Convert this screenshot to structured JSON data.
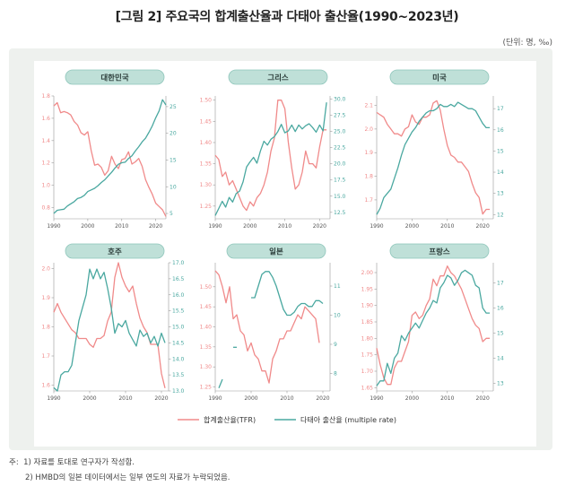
{
  "title": "[그림 2] 주요국의 합계출산율과 다태아 출산율(1990~2023년)",
  "unit": "(단위: 명, ‰)",
  "notes": {
    "prefix": "주:",
    "line1": "1) 자료를 토대로 연구자가 작성함.",
    "line2": "2) HMBD의 일본 데이터에서는 일부 연도의 자료가 누락되었음."
  },
  "legend": {
    "tfr": "합계출산율(TFR)",
    "multiple": "다태아 출산율 (multiple rate)"
  },
  "colors": {
    "tfr": "#f08a8a",
    "multiple": "#4aa8a0",
    "pill": "#bfe0d8",
    "pill_border": "#8fc6bb"
  },
  "chart_data": [
    {
      "type": "line",
      "country": "대한민국",
      "x_ticks": [
        1990,
        2000,
        2010,
        2020
      ],
      "xlim": [
        1990,
        2023
      ],
      "left_ticks": [
        0.8,
        1.0,
        1.2,
        1.4,
        1.6,
        1.8
      ],
      "left_ylim": [
        0.7,
        1.8
      ],
      "right_ticks": [
        5,
        10,
        15,
        20,
        25
      ],
      "right_ylim": [
        4,
        27
      ],
      "series": [
        {
          "key": "tfr",
          "axis": "left",
          "x": [
            1990,
            1991,
            1992,
            1993,
            1994,
            1995,
            1996,
            1997,
            1998,
            1999,
            2000,
            2001,
            2002,
            2003,
            2004,
            2005,
            2006,
            2007,
            2008,
            2009,
            2010,
            2011,
            2012,
            2013,
            2014,
            2015,
            2016,
            2017,
            2018,
            2019,
            2020,
            2021,
            2022,
            2023
          ],
          "values": [
            1.71,
            1.74,
            1.65,
            1.66,
            1.65,
            1.63,
            1.57,
            1.54,
            1.47,
            1.45,
            1.48,
            1.31,
            1.18,
            1.19,
            1.16,
            1.09,
            1.13,
            1.26,
            1.19,
            1.15,
            1.23,
            1.24,
            1.3,
            1.19,
            1.21,
            1.24,
            1.17,
            1.05,
            0.98,
            0.92,
            0.84,
            0.81,
            0.78,
            0.72
          ]
        },
        {
          "key": "multiple",
          "axis": "right",
          "x": [
            1990,
            1991,
            1992,
            1993,
            1994,
            1995,
            1996,
            1997,
            1998,
            1999,
            2000,
            2001,
            2002,
            2003,
            2004,
            2005,
            2006,
            2007,
            2008,
            2009,
            2010,
            2011,
            2012,
            2013,
            2014,
            2015,
            2016,
            2017,
            2018,
            2019,
            2020,
            2021,
            2022,
            2023
          ],
          "values": [
            5.0,
            5.6,
            5.7,
            5.8,
            6.4,
            6.8,
            7.2,
            7.8,
            8.0,
            8.4,
            9.1,
            9.4,
            9.7,
            10.2,
            10.8,
            11.3,
            12.0,
            12.7,
            13.5,
            14.2,
            14.5,
            14.6,
            15.3,
            15.8,
            16.7,
            17.5,
            18.4,
            19.1,
            20.2,
            21.4,
            22.9,
            24.2,
            26.3,
            25.3
          ]
        }
      ]
    },
    {
      "type": "line",
      "country": "그리스",
      "x_ticks": [
        1990,
        2000,
        2010,
        2020
      ],
      "xlim": [
        1990,
        2023
      ],
      "left_ticks": [
        1.25,
        1.3,
        1.35,
        1.4,
        1.45,
        1.5
      ],
      "left_ylim": [
        1.22,
        1.51
      ],
      "right_ticks": [
        12.5,
        15.0,
        17.5,
        20.0,
        22.5,
        25.0,
        27.5,
        30.0
      ],
      "right_ylim": [
        11.5,
        30.5
      ],
      "series": [
        {
          "key": "tfr",
          "axis": "left",
          "x": [
            1990,
            1991,
            1992,
            1993,
            1994,
            1995,
            1996,
            1997,
            1998,
            1999,
            2000,
            2001,
            2002,
            2003,
            2004,
            2005,
            2006,
            2007,
            2008,
            2009,
            2010,
            2011,
            2012,
            2013,
            2014,
            2015,
            2016,
            2017,
            2018,
            2019,
            2020,
            2021,
            2022
          ],
          "values": [
            1.37,
            1.36,
            1.32,
            1.33,
            1.3,
            1.31,
            1.29,
            1.27,
            1.25,
            1.24,
            1.26,
            1.25,
            1.27,
            1.28,
            1.3,
            1.33,
            1.38,
            1.41,
            1.5,
            1.5,
            1.48,
            1.4,
            1.34,
            1.29,
            1.3,
            1.33,
            1.38,
            1.35,
            1.35,
            1.34,
            1.39,
            1.43,
            1.43
          ]
        },
        {
          "key": "multiple",
          "axis": "right",
          "x": [
            1990,
            1991,
            1992,
            1993,
            1994,
            1995,
            1996,
            1997,
            1998,
            1999,
            2000,
            2001,
            2002,
            2003,
            2004,
            2005,
            2006,
            2007,
            2008,
            2009,
            2010,
            2011,
            2012,
            2013,
            2014,
            2015,
            2016,
            2017,
            2018,
            2019,
            2020,
            2021,
            2022
          ],
          "values": [
            12.0,
            13.1,
            14.2,
            13.3,
            14.8,
            14.1,
            15.4,
            15.8,
            17.2,
            19.5,
            20.3,
            21.0,
            20.1,
            22.0,
            23.5,
            22.9,
            23.8,
            24.2,
            25.0,
            26.1,
            24.8,
            25.1,
            26.0,
            25.0,
            26.0,
            25.4,
            25.9,
            26.2,
            25.6,
            24.9,
            26.0,
            25.1,
            29.5
          ]
        }
      ]
    },
    {
      "type": "line",
      "country": "미국",
      "x_ticks": [
        1990,
        2000,
        2010,
        2020
      ],
      "xlim": [
        1990,
        2023
      ],
      "left_ticks": [
        1.7,
        1.8,
        1.9,
        2.0,
        2.1
      ],
      "left_ylim": [
        1.62,
        2.14
      ],
      "right_ticks": [
        12,
        13,
        14,
        15,
        16,
        17
      ],
      "right_ylim": [
        11.8,
        17.6
      ],
      "series": [
        {
          "key": "tfr",
          "axis": "left",
          "x": [
            1990,
            1991,
            1992,
            1993,
            1994,
            1995,
            1996,
            1997,
            1998,
            1999,
            2000,
            2001,
            2002,
            2003,
            2004,
            2005,
            2006,
            2007,
            2008,
            2009,
            2010,
            2011,
            2012,
            2013,
            2014,
            2015,
            2016,
            2017,
            2018,
            2019,
            2020,
            2021,
            2022
          ],
          "values": [
            2.07,
            2.06,
            2.05,
            2.02,
            2.0,
            1.98,
            1.98,
            1.97,
            2.0,
            2.01,
            2.06,
            2.03,
            2.02,
            2.05,
            2.05,
            2.06,
            2.11,
            2.12,
            2.08,
            2.0,
            1.93,
            1.89,
            1.88,
            1.86,
            1.86,
            1.84,
            1.82,
            1.77,
            1.73,
            1.71,
            1.64,
            1.66,
            1.66
          ]
        },
        {
          "key": "multiple",
          "axis": "right",
          "x": [
            1990,
            1991,
            1992,
            1993,
            1994,
            1995,
            1996,
            1997,
            1998,
            1999,
            2000,
            2001,
            2002,
            2003,
            2004,
            2005,
            2006,
            2007,
            2008,
            2009,
            2010,
            2011,
            2012,
            2013,
            2014,
            2015,
            2016,
            2017,
            2018,
            2019,
            2020,
            2021,
            2022
          ],
          "values": [
            12.0,
            12.3,
            12.8,
            13.0,
            13.2,
            13.7,
            14.2,
            14.8,
            15.3,
            15.6,
            15.9,
            16.1,
            16.4,
            16.6,
            16.8,
            16.9,
            16.9,
            17.0,
            17.2,
            17.1,
            17.1,
            17.2,
            17.1,
            17.3,
            17.2,
            17.1,
            17.0,
            17.0,
            16.9,
            16.6,
            16.3,
            16.1,
            16.1
          ]
        }
      ]
    },
    {
      "type": "line",
      "country": "호주",
      "x_ticks": [
        1990,
        2000,
        2010,
        2020
      ],
      "xlim": [
        1990,
        2022
      ],
      "left_ticks": [
        1.6,
        1.7,
        1.8,
        1.9,
        2.0
      ],
      "left_ylim": [
        1.58,
        2.02
      ],
      "right_ticks": [
        13.0,
        13.5,
        14.0,
        14.5,
        15.0,
        15.5,
        16.0,
        16.5,
        17.0
      ],
      "right_ylim": [
        13.0,
        17.0
      ],
      "series": [
        {
          "key": "tfr",
          "axis": "left",
          "x": [
            1990,
            1991,
            1992,
            1993,
            1994,
            1995,
            1996,
            1997,
            1998,
            1999,
            2000,
            2001,
            2002,
            2003,
            2004,
            2005,
            2006,
            2007,
            2008,
            2009,
            2010,
            2011,
            2012,
            2013,
            2014,
            2015,
            2016,
            2017,
            2018,
            2019,
            2020,
            2021
          ],
          "values": [
            1.85,
            1.88,
            1.85,
            1.83,
            1.81,
            1.79,
            1.78,
            1.76,
            1.76,
            1.76,
            1.74,
            1.73,
            1.76,
            1.76,
            1.77,
            1.82,
            1.85,
            1.97,
            2.02,
            1.97,
            1.94,
            1.92,
            1.94,
            1.88,
            1.83,
            1.8,
            1.78,
            1.74,
            1.74,
            1.74,
            1.64,
            1.59
          ]
        },
        {
          "key": "multiple",
          "axis": "right",
          "x": [
            1990,
            1991,
            1992,
            1993,
            1994,
            1995,
            1996,
            1997,
            1998,
            1999,
            2000,
            2001,
            2002,
            2003,
            2004,
            2005,
            2006,
            2007,
            2008,
            2009,
            2010,
            2011,
            2012,
            2013,
            2014,
            2015,
            2016,
            2017,
            2018,
            2019,
            2020,
            2021
          ],
          "values": [
            13.1,
            13.0,
            13.5,
            13.6,
            13.6,
            13.8,
            14.5,
            15.2,
            15.6,
            16.0,
            16.8,
            16.5,
            16.8,
            16.5,
            16.7,
            16.2,
            15.6,
            14.8,
            15.1,
            15.0,
            15.2,
            14.8,
            14.6,
            14.4,
            14.9,
            14.7,
            14.8,
            14.5,
            14.7,
            14.4,
            14.8,
            14.5
          ]
        }
      ]
    },
    {
      "type": "line",
      "country": "일본",
      "x_ticks": [
        1990,
        2000,
        2010,
        2020
      ],
      "xlim": [
        1990,
        2022
      ],
      "left_ticks": [
        1.25,
        1.3,
        1.35,
        1.4,
        1.45,
        1.5
      ],
      "left_ylim": [
        1.24,
        1.56
      ],
      "right_ticks": [
        8,
        9,
        10,
        11
      ],
      "right_ylim": [
        7.4,
        11.8
      ],
      "series": [
        {
          "key": "tfr",
          "axis": "left",
          "x": [
            1990,
            1991,
            1992,
            1993,
            1994,
            1995,
            1996,
            1997,
            1998,
            1999,
            2000,
            2001,
            2002,
            2003,
            2004,
            2005,
            2006,
            2007,
            2008,
            2009,
            2010,
            2011,
            2012,
            2013,
            2014,
            2015,
            2016,
            2017,
            2018,
            2019
          ],
          "values": [
            1.54,
            1.53,
            1.5,
            1.46,
            1.5,
            1.42,
            1.43,
            1.39,
            1.38,
            1.34,
            1.36,
            1.33,
            1.32,
            1.29,
            1.29,
            1.26,
            1.32,
            1.34,
            1.37,
            1.37,
            1.39,
            1.39,
            1.41,
            1.43,
            1.42,
            1.45,
            1.44,
            1.43,
            1.42,
            1.36
          ]
        },
        {
          "key": "multiple",
          "axis": "right",
          "x": [
            1990,
            1991,
            1992,
            1993,
            1994,
            1995,
            1996,
            1997,
            1998,
            1999,
            2000,
            2001,
            2002,
            2003,
            2004,
            2005,
            2006,
            2007,
            2008,
            2009,
            2010,
            2011,
            2012,
            2013,
            2014,
            2015,
            2016,
            2017,
            2018,
            2019,
            2020
          ],
          "values": [
            null,
            7.5,
            7.8,
            null,
            null,
            8.9,
            8.9,
            null,
            null,
            null,
            10.6,
            10.6,
            11.0,
            11.4,
            11.5,
            11.5,
            11.3,
            11.0,
            10.6,
            10.2,
            10.0,
            10.0,
            10.1,
            10.3,
            10.4,
            10.4,
            10.3,
            10.3,
            10.5,
            10.5,
            10.4
          ]
        }
      ]
    },
    {
      "type": "line",
      "country": "프랑스",
      "x_ticks": [
        1990,
        2000,
        2010,
        2020
      ],
      "xlim": [
        1990,
        2023
      ],
      "left_ticks": [
        1.65,
        1.7,
        1.75,
        1.8,
        1.85,
        1.9,
        1.95,
        2.0
      ],
      "left_ylim": [
        1.64,
        2.03
      ],
      "right_ticks": [
        13,
        14,
        15,
        16,
        17
      ],
      "right_ylim": [
        12.7,
        17.8
      ],
      "series": [
        {
          "key": "tfr",
          "axis": "left",
          "x": [
            1990,
            1991,
            1992,
            1993,
            1994,
            1995,
            1996,
            1997,
            1998,
            1999,
            2000,
            2001,
            2002,
            2003,
            2004,
            2005,
            2006,
            2007,
            2008,
            2009,
            2010,
            2011,
            2012,
            2013,
            2014,
            2015,
            2016,
            2017,
            2018,
            2019,
            2020,
            2021,
            2022
          ],
          "values": [
            1.77,
            1.72,
            1.68,
            1.66,
            1.66,
            1.71,
            1.73,
            1.73,
            1.76,
            1.79,
            1.87,
            1.88,
            1.86,
            1.87,
            1.9,
            1.92,
            1.98,
            1.96,
            1.99,
            1.99,
            2.02,
            2.0,
            1.99,
            1.97,
            1.95,
            1.92,
            1.89,
            1.86,
            1.84,
            1.83,
            1.79,
            1.8,
            1.8
          ]
        },
        {
          "key": "multiple",
          "axis": "right",
          "x": [
            1990,
            1991,
            1992,
            1993,
            1994,
            1995,
            1996,
            1997,
            1998,
            1999,
            2000,
            2001,
            2002,
            2003,
            2004,
            2005,
            2006,
            2007,
            2008,
            2009,
            2010,
            2011,
            2012,
            2013,
            2014,
            2015,
            2016,
            2017,
            2018,
            2019,
            2020,
            2021,
            2022
          ],
          "values": [
            12.9,
            13.1,
            13.1,
            13.8,
            13.4,
            14.0,
            14.2,
            14.9,
            14.7,
            15.0,
            15.2,
            15.4,
            15.2,
            15.5,
            15.8,
            16.0,
            16.3,
            16.2,
            16.8,
            17.0,
            17.3,
            17.2,
            16.9,
            17.1,
            17.4,
            17.5,
            17.4,
            17.3,
            16.9,
            16.8,
            16.0,
            15.8,
            15.8
          ]
        }
      ]
    }
  ]
}
